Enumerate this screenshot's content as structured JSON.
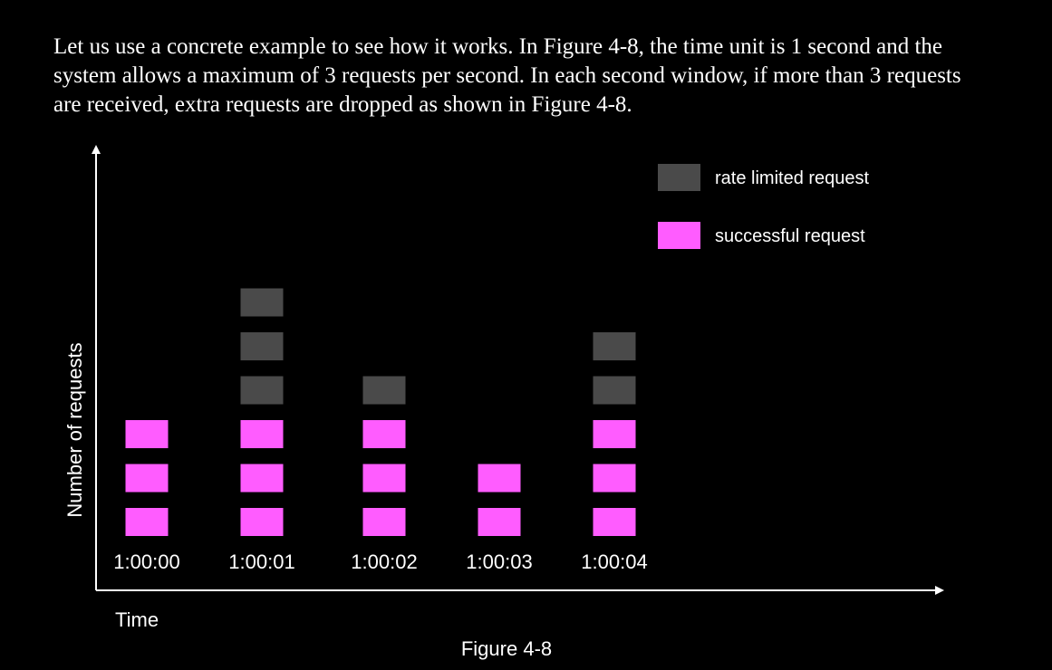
{
  "intro_text": "Let us use a concrete example to see how it works. In Figure 4-8, the time unit is 1 second and the system allows a maximum of 3 requests per second. In each second window, if more than 3 requests are received, extra requests are dropped as shown in Figure 4-8.",
  "caption": "Figure 4-8",
  "colors": {
    "successful": "#ff5cff",
    "rate_limited": "#4a4a4a",
    "axis": "#ffffff",
    "background": "#000000"
  },
  "chart_data": {
    "type": "bar",
    "title": "",
    "xlabel": "Time",
    "ylabel": "Number of requests",
    "legend_position": "top-right",
    "categories": [
      "1:00:00",
      "1:00:01",
      "1:00:02",
      "1:00:03",
      "1:00:04"
    ],
    "series": [
      {
        "name": "successful request",
        "color": "#ff5cff",
        "values": [
          3,
          3,
          3,
          2,
          3
        ]
      },
      {
        "name": "rate limited request",
        "color": "#4a4a4a",
        "values": [
          0,
          3,
          1,
          0,
          2
        ]
      }
    ],
    "legend": [
      {
        "label": "rate limited request",
        "series": "rate limited request"
      },
      {
        "label": "successful request",
        "series": "successful request"
      }
    ]
  }
}
